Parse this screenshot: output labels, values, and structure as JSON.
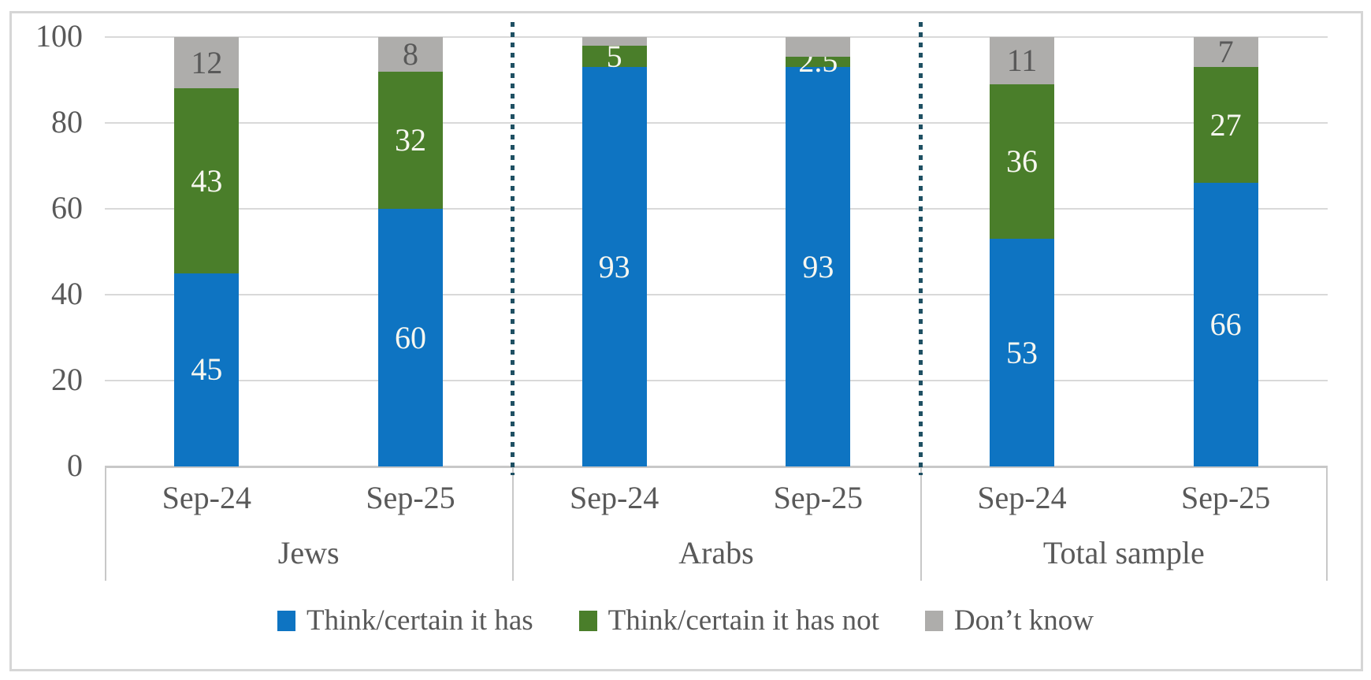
{
  "chart_data": {
    "type": "bar",
    "stacked": true,
    "title": "",
    "xlabel": "",
    "ylabel": "",
    "ylim": [
      0,
      100
    ],
    "yticks": [
      0,
      20,
      40,
      60,
      80,
      100
    ],
    "grid": true,
    "legend_position": "bottom",
    "groups": [
      {
        "label": "Jews",
        "categories": [
          "Sep-24",
          "Sep-25"
        ]
      },
      {
        "label": "Arabs",
        "categories": [
          "Sep-24",
          "Sep-25"
        ]
      },
      {
        "label": "Total sample",
        "categories": [
          "Sep-24",
          "Sep-25"
        ]
      }
    ],
    "categories_flat": [
      "Sep-24",
      "Sep-25",
      "Sep-24",
      "Sep-25",
      "Sep-24",
      "Sep-25"
    ],
    "series": [
      {
        "name": "Think/certain it has",
        "color": "#0e74c2",
        "label_color": "#f7f7f0",
        "values": [
          45,
          60,
          93,
          93,
          53,
          66
        ],
        "labels": [
          "45",
          "60",
          "93",
          "93",
          "53",
          "66"
        ]
      },
      {
        "name": "Think/certain it has not",
        "color": "#4a7e2a",
        "label_color": "#f7f7f0",
        "values": [
          43,
          32,
          5,
          2.5,
          36,
          27
        ],
        "labels": [
          "43",
          "32",
          "5",
          "2.5",
          "36",
          "27"
        ]
      },
      {
        "name": "Don’t know",
        "color": "#aeadab",
        "label_color": "#595959",
        "values": [
          12,
          8,
          2,
          4.5,
          11,
          7
        ],
        "labels": [
          "12",
          "8",
          "",
          "",
          "11",
          "7"
        ]
      }
    ],
    "group_dividers": {
      "style": "dotted",
      "color": "#1f5063",
      "after_groups": [
        1,
        2
      ]
    }
  },
  "style_colors": {
    "gridline": "#d9d9d9",
    "axis_line": "#c8c8c8",
    "axis_text": "#595959",
    "frame_border": "#d6d6d6",
    "background": "#ffffff"
  }
}
